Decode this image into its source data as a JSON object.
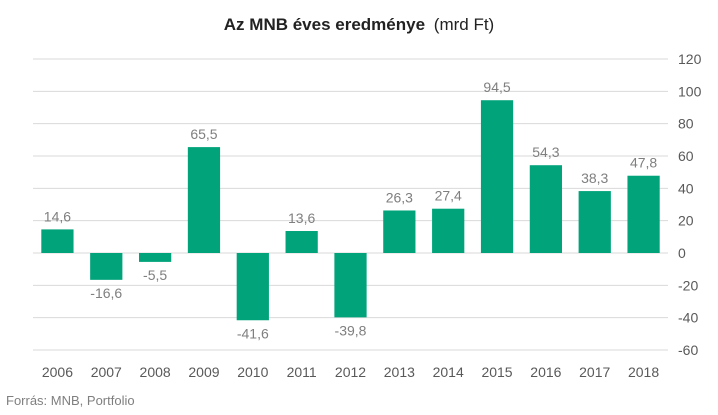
{
  "chart_data": {
    "type": "bar",
    "title_bold": "Az MNB éves eredménye",
    "title_unit": "(mrd Ft)",
    "categories": [
      "2006",
      "2007",
      "2008",
      "2009",
      "2010",
      "2011",
      "2012",
      "2013",
      "2014",
      "2015",
      "2016",
      "2017",
      "2018"
    ],
    "values": [
      14.6,
      -16.6,
      -5.5,
      65.5,
      -41.6,
      13.6,
      -39.8,
      26.3,
      27.4,
      94.5,
      54.3,
      38.3,
      47.8
    ],
    "value_labels": [
      "14,6",
      "-16,6",
      "-5,5",
      "65,5",
      "-41,6",
      "13,6",
      "-39,8",
      "26,3",
      "27,4",
      "94,5",
      "54,3",
      "38,3",
      "47,8"
    ],
    "yticks": [
      120,
      100,
      80,
      60,
      40,
      20,
      0,
      -20,
      -40,
      -60
    ],
    "ylim": [
      -60,
      120
    ],
    "y_axis_side": "right",
    "grid": true,
    "bar_color": "#00a37a",
    "source": "Forrás: MNB, Portfolio"
  }
}
